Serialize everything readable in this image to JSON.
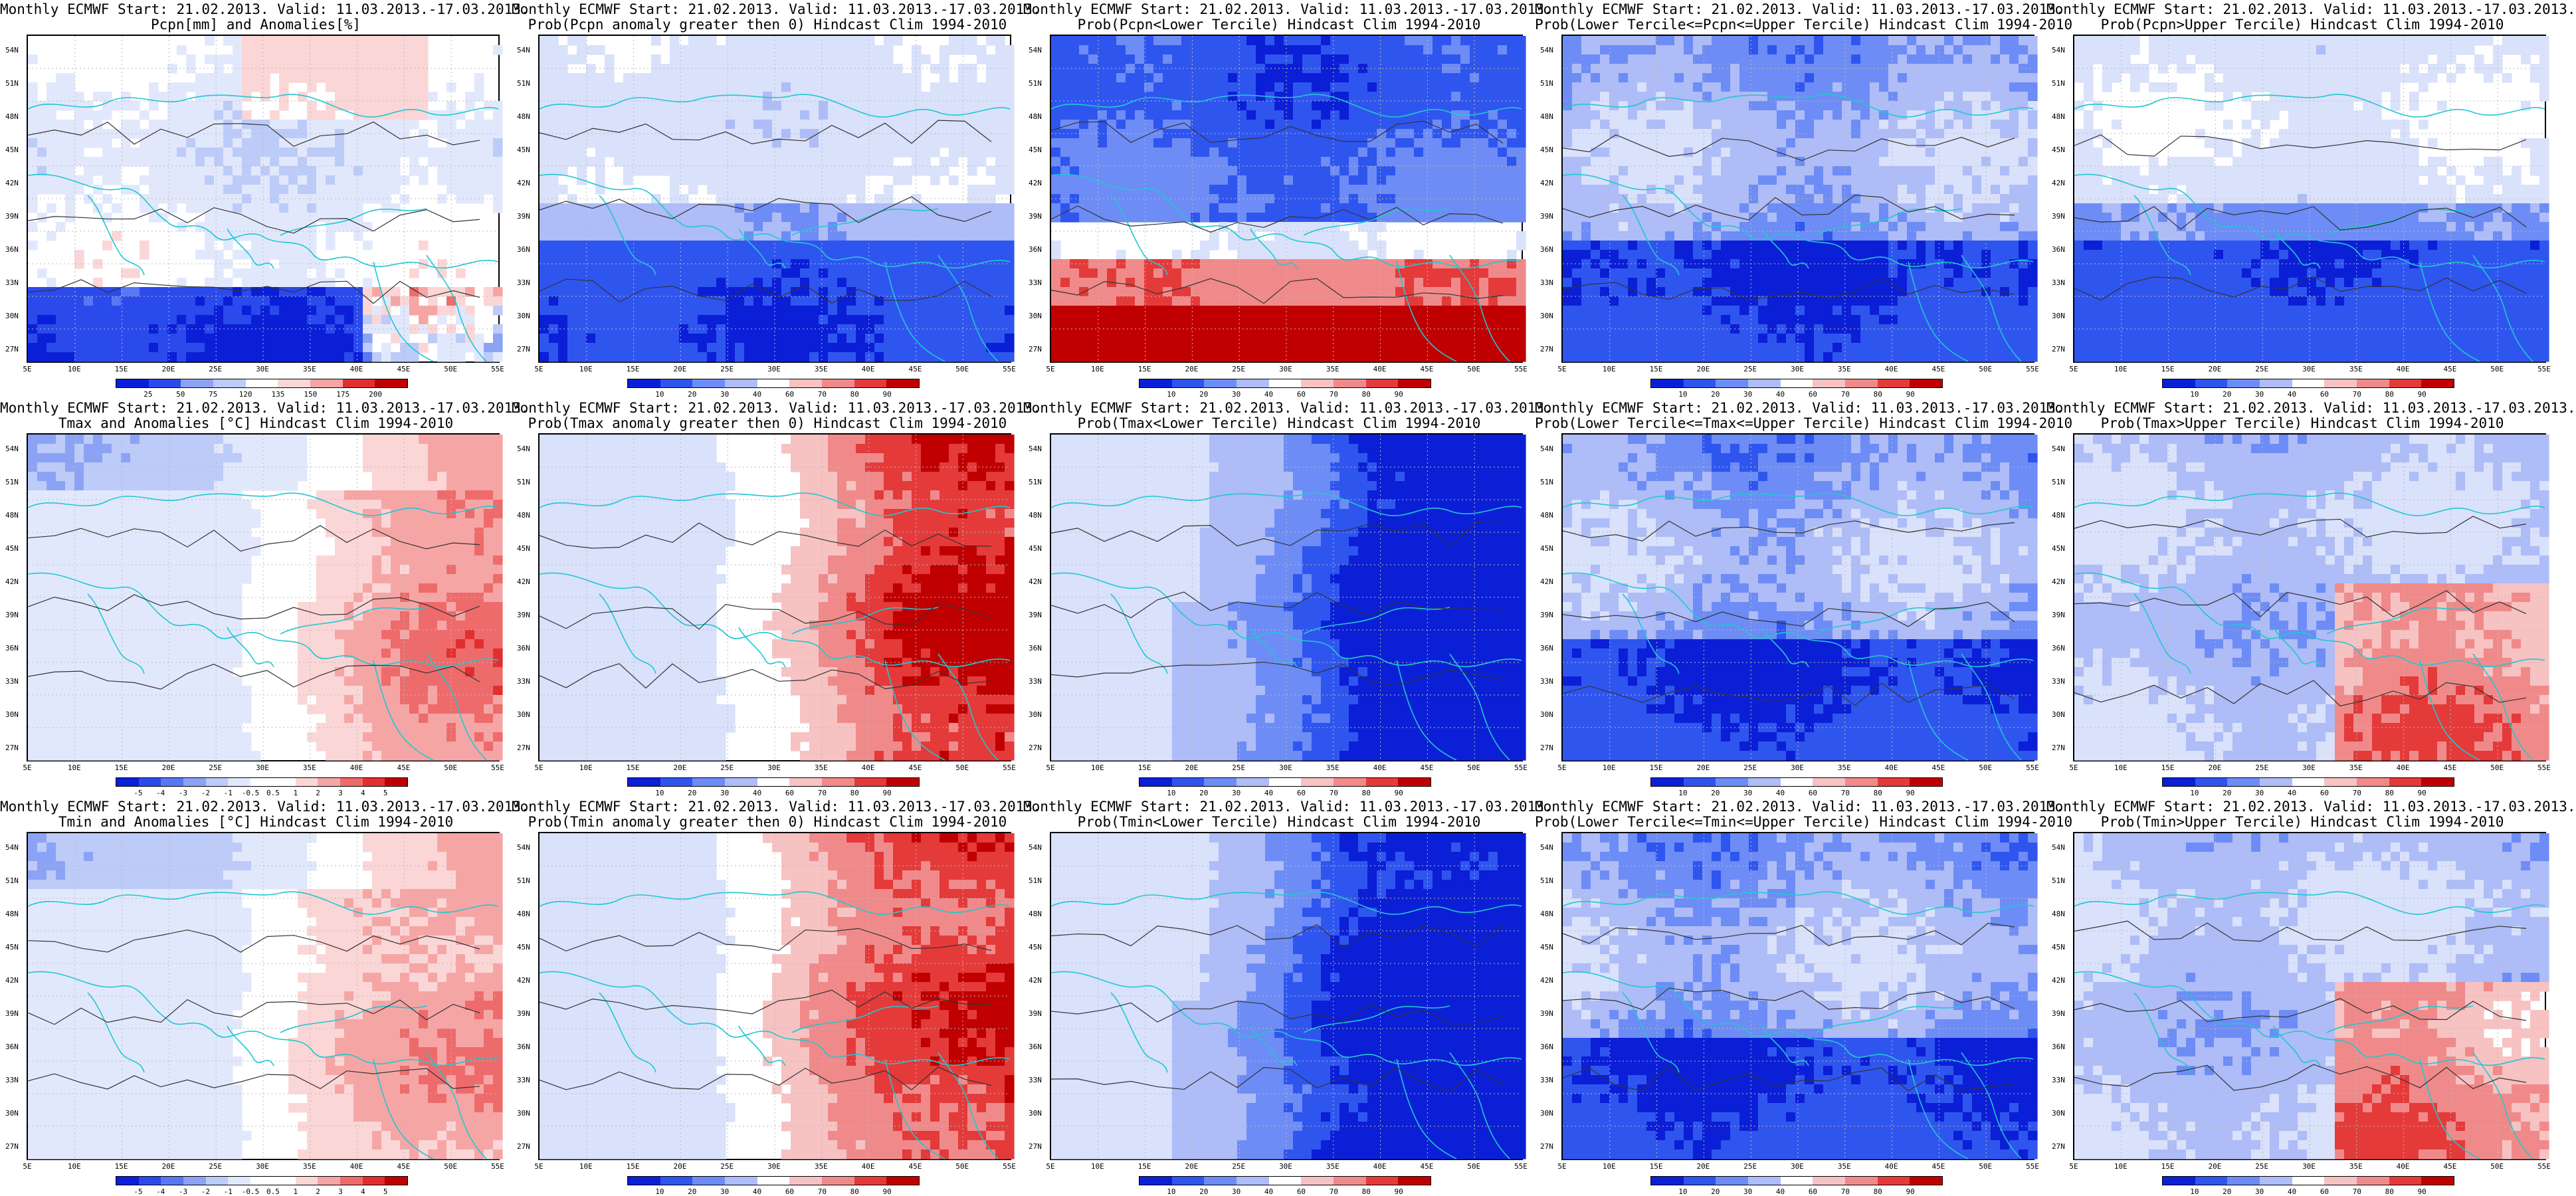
{
  "figure": {
    "rows": [
      {
        "variable": "Pcpn",
        "panels": [
          {
            "title1": "Monthly ECMWF Start: 21.02.2013. Valid: 11.03.2013.-17.03.2013.",
            "title2": "Pcpn[mm] and Anomalies[%]",
            "kind": "anomaly",
            "colorbar_labels": [
              "25",
              "50",
              "75",
              "120",
              "135",
              "150",
              "175",
              "200"
            ],
            "pattern": "precip-anom"
          },
          {
            "title1": "Monthly ECMWF Start: 21.02.2013. Valid: 11.03.2013.-17.03.2013.",
            "title2": "Prob(Pcpn anomaly greater then 0) Hindcast Clim 1994-2010",
            "kind": "prob",
            "colorbar_labels": [
              "10",
              "20",
              "30",
              "40",
              "60",
              "70",
              "80",
              "90"
            ],
            "pattern": "south-blue"
          },
          {
            "title1": "Monthly ECMWF Start: 21.02.2013. Valid: 11.03.2013.-17.03.2013.",
            "title2": "Prob(Pcpn<Lower Tercile) Hindcast Clim 1994-2010",
            "kind": "prob",
            "colorbar_labels": [
              "10",
              "20",
              "30",
              "40",
              "60",
              "70",
              "80",
              "90"
            ],
            "pattern": "north-blue-south-red"
          },
          {
            "title1": "Monthly ECMWF Start: 21.02.2013. Valid: 11.03.2013.-17.03.2013.",
            "title2": "Prob(Lower Tercile<=Pcpn<=Upper Tercile) Hindcast Clim 1994-2010",
            "kind": "prob",
            "colorbar_labels": [
              "10",
              "20",
              "30",
              "40",
              "60",
              "70",
              "80",
              "90"
            ],
            "pattern": "mixed-blue"
          },
          {
            "title1": "Monthly ECMWF Start: 21.02.2013. Valid: 11.03.2013.-17.03.2013.",
            "title2": "Prob(Pcpn>Upper Tercile) Hindcast Clim 1994-2010",
            "kind": "prob",
            "colorbar_labels": [
              "10",
              "20",
              "30",
              "40",
              "60",
              "70",
              "80",
              "90"
            ],
            "pattern": "south-blue"
          }
        ]
      },
      {
        "variable": "Tmax",
        "panels": [
          {
            "title1": "Monthly ECMWF Start: 21.02.2013. Valid: 11.03.2013.-17.03.2013.",
            "title2": "Tmax and Anomalies [°C] Hindcast Clim 1994-2010",
            "kind": "anomaly",
            "colorbar_labels": [
              "-5",
              "-4",
              "-3",
              "-2",
              "-1",
              "-0.5",
              "0.5",
              "1",
              "2",
              "3",
              "4",
              "5"
            ],
            "pattern": "east-red"
          },
          {
            "title1": "Monthly ECMWF Start: 21.02.2013. Valid: 11.03.2013.-17.03.2013.",
            "title2": "Prob(Tmax anomaly greater then 0) Hindcast Clim 1994-2010",
            "kind": "prob",
            "colorbar_labels": [
              "10",
              "20",
              "30",
              "40",
              "60",
              "70",
              "80",
              "90"
            ],
            "pattern": "east-red-strong"
          },
          {
            "title1": "Monthly ECMWF Start: 21.02.2013. Valid: 11.03.2013.-17.03.2013.",
            "title2": "Prob(Tmax<Lower Tercile) Hindcast Clim 1994-2010",
            "kind": "prob",
            "colorbar_labels": [
              "10",
              "20",
              "30",
              "40",
              "60",
              "70",
              "80",
              "90"
            ],
            "pattern": "east-blue"
          },
          {
            "title1": "Monthly ECMWF Start: 21.02.2013. Valid: 11.03.2013.-17.03.2013.",
            "title2": "Prob(Lower Tercile<=Tmax<=Upper Tercile) Hindcast Clim 1994-2010",
            "kind": "prob",
            "colorbar_labels": [
              "10",
              "20",
              "30",
              "40",
              "60",
              "70",
              "80",
              "90"
            ],
            "pattern": "mixed-blue"
          },
          {
            "title1": "Monthly ECMWF Start: 21.02.2013. Valid: 11.03.2013.-17.03.2013.",
            "title2": "Prob(Tmax>Upper Tercile) Hindcast Clim 1994-2010",
            "kind": "prob",
            "colorbar_labels": [
              "10",
              "20",
              "30",
              "40",
              "60",
              "70",
              "80",
              "90"
            ],
            "pattern": "pale-blue-se-red"
          }
        ]
      },
      {
        "variable": "Tmin",
        "panels": [
          {
            "title1": "Monthly ECMWF Start: 21.02.2013. Valid: 11.03.2013.-17.03.2013.",
            "title2": "Tmin and Anomalies [°C] Hindcast Clim 1994-2010",
            "kind": "anomaly",
            "colorbar_labels": [
              "-5",
              "-4",
              "-3",
              "-2",
              "-1",
              "-0.5",
              "0.5",
              "1",
              "2",
              "3",
              "4",
              "5"
            ],
            "pattern": "east-red"
          },
          {
            "title1": "Monthly ECMWF Start: 21.02.2013. Valid: 11.03.2013.-17.03.2013.",
            "title2": "Prob(Tmin anomaly greater then 0) Hindcast Clim 1994-2010",
            "kind": "prob",
            "colorbar_labels": [
              "10",
              "20",
              "30",
              "40",
              "60",
              "70",
              "80",
              "90"
            ],
            "pattern": "east-red-strong"
          },
          {
            "title1": "Monthly ECMWF Start: 21.02.2013. Valid: 11.03.2013.-17.03.2013.",
            "title2": "Prob(Tmin<Lower Tercile) Hindcast Clim 1994-2010",
            "kind": "prob",
            "colorbar_labels": [
              "10",
              "20",
              "30",
              "40",
              "60",
              "70",
              "80",
              "90"
            ],
            "pattern": "east-blue"
          },
          {
            "title1": "Monthly ECMWF Start: 21.02.2013. Valid: 11.03.2013.-17.03.2013.",
            "title2": "Prob(Lower Tercile<=Tmin<=Upper Tercile) Hindcast Clim 1994-2010",
            "kind": "prob",
            "colorbar_labels": [
              "10",
              "20",
              "30",
              "40",
              "60",
              "70",
              "80",
              "90"
            ],
            "pattern": "mixed-blue"
          },
          {
            "title1": "Monthly ECMWF Start: 21.02.2013. Valid: 11.03.2013.-17.03.2013.",
            "title2": "Prob(Tmin>Upper Tercile) Hindcast Clim 1994-2010",
            "kind": "prob",
            "colorbar_labels": [
              "10",
              "20",
              "30",
              "40",
              "60",
              "70",
              "80",
              "90"
            ],
            "pattern": "pale-blue-se-red"
          }
        ]
      }
    ],
    "lat_labels": [
      "54N",
      "51N",
      "48N",
      "45N",
      "42N",
      "39N",
      "36N",
      "33N",
      "30N",
      "27N"
    ],
    "lon_labels": [
      "5E",
      "10E",
      "15E",
      "20E",
      "25E",
      "30E",
      "35E",
      "40E",
      "45E",
      "50E",
      "55E"
    ],
    "colors": {
      "prob_scale": [
        "#0b1fd6",
        "#2f55ef",
        "#6d8cf5",
        "#aebcf7",
        "#d9e1fb",
        "#ffffff",
        "#f7c2c2",
        "#f08a8a",
        "#e43a3a",
        "#c00000"
      ],
      "anom_scale": [
        "#0b1fd6",
        "#2a4aec",
        "#5877f2",
        "#8ca3f5",
        "#bccbf8",
        "#e2e8fc",
        "#ffffff",
        "#fbd6d6",
        "#f6a5a5",
        "#ee6b6b",
        "#e12f2f",
        "#c00000"
      ],
      "coast": "#21c7d1",
      "contour": "#333333"
    }
  }
}
